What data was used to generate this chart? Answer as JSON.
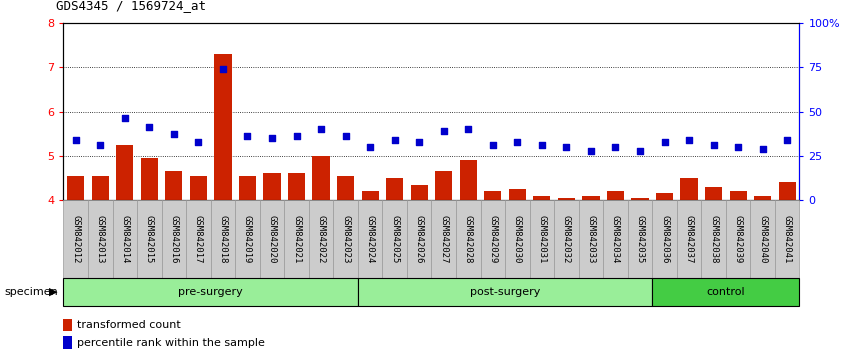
{
  "title": "GDS4345 / 1569724_at",
  "samples": [
    "GSM842012",
    "GSM842013",
    "GSM842014",
    "GSM842015",
    "GSM842016",
    "GSM842017",
    "GSM842018",
    "GSM842019",
    "GSM842020",
    "GSM842021",
    "GSM842022",
    "GSM842023",
    "GSM842024",
    "GSM842025",
    "GSM842026",
    "GSM842027",
    "GSM842028",
    "GSM842029",
    "GSM842030",
    "GSM842031",
    "GSM842032",
    "GSM842033",
    "GSM842034",
    "GSM842035",
    "GSM842036",
    "GSM842037",
    "GSM842038",
    "GSM842039",
    "GSM842040",
    "GSM842041"
  ],
  "red_values": [
    4.55,
    4.55,
    5.25,
    4.95,
    4.65,
    4.55,
    7.3,
    4.55,
    4.6,
    4.6,
    5.0,
    4.55,
    4.2,
    4.5,
    4.35,
    4.65,
    4.9,
    4.2,
    4.25,
    4.1,
    4.05,
    4.1,
    4.2,
    4.05,
    4.15,
    4.5,
    4.3,
    4.2,
    4.1,
    4.4
  ],
  "blue_values": [
    5.35,
    5.25,
    5.85,
    5.65,
    5.5,
    5.3,
    6.95,
    5.45,
    5.4,
    5.45,
    5.6,
    5.45,
    5.2,
    5.35,
    5.3,
    5.55,
    5.6,
    5.25,
    5.3,
    5.25,
    5.2,
    5.1,
    5.2,
    5.1,
    5.3,
    5.35,
    5.25,
    5.2,
    5.15,
    5.35
  ],
  "group_info": [
    {
      "label": "pre-surgery",
      "start": 0,
      "end": 12,
      "color": "#99ee99"
    },
    {
      "label": "post-surgery",
      "start": 12,
      "end": 24,
      "color": "#99ee99"
    },
    {
      "label": "control",
      "start": 24,
      "end": 30,
      "color": "#44cc44"
    }
  ],
  "ylim_left": [
    4.0,
    8.0
  ],
  "yticks_left": [
    4,
    5,
    6,
    7,
    8
  ],
  "yticks_right": [
    0,
    25,
    50,
    75,
    100
  ],
  "ytick_labels_right": [
    "0",
    "25",
    "50",
    "75",
    "100%"
  ],
  "bar_color": "#CC2200",
  "dot_color": "#0000CC",
  "bar_width": 0.7,
  "cell_bg": "#cccccc",
  "cell_edge": "#999999"
}
